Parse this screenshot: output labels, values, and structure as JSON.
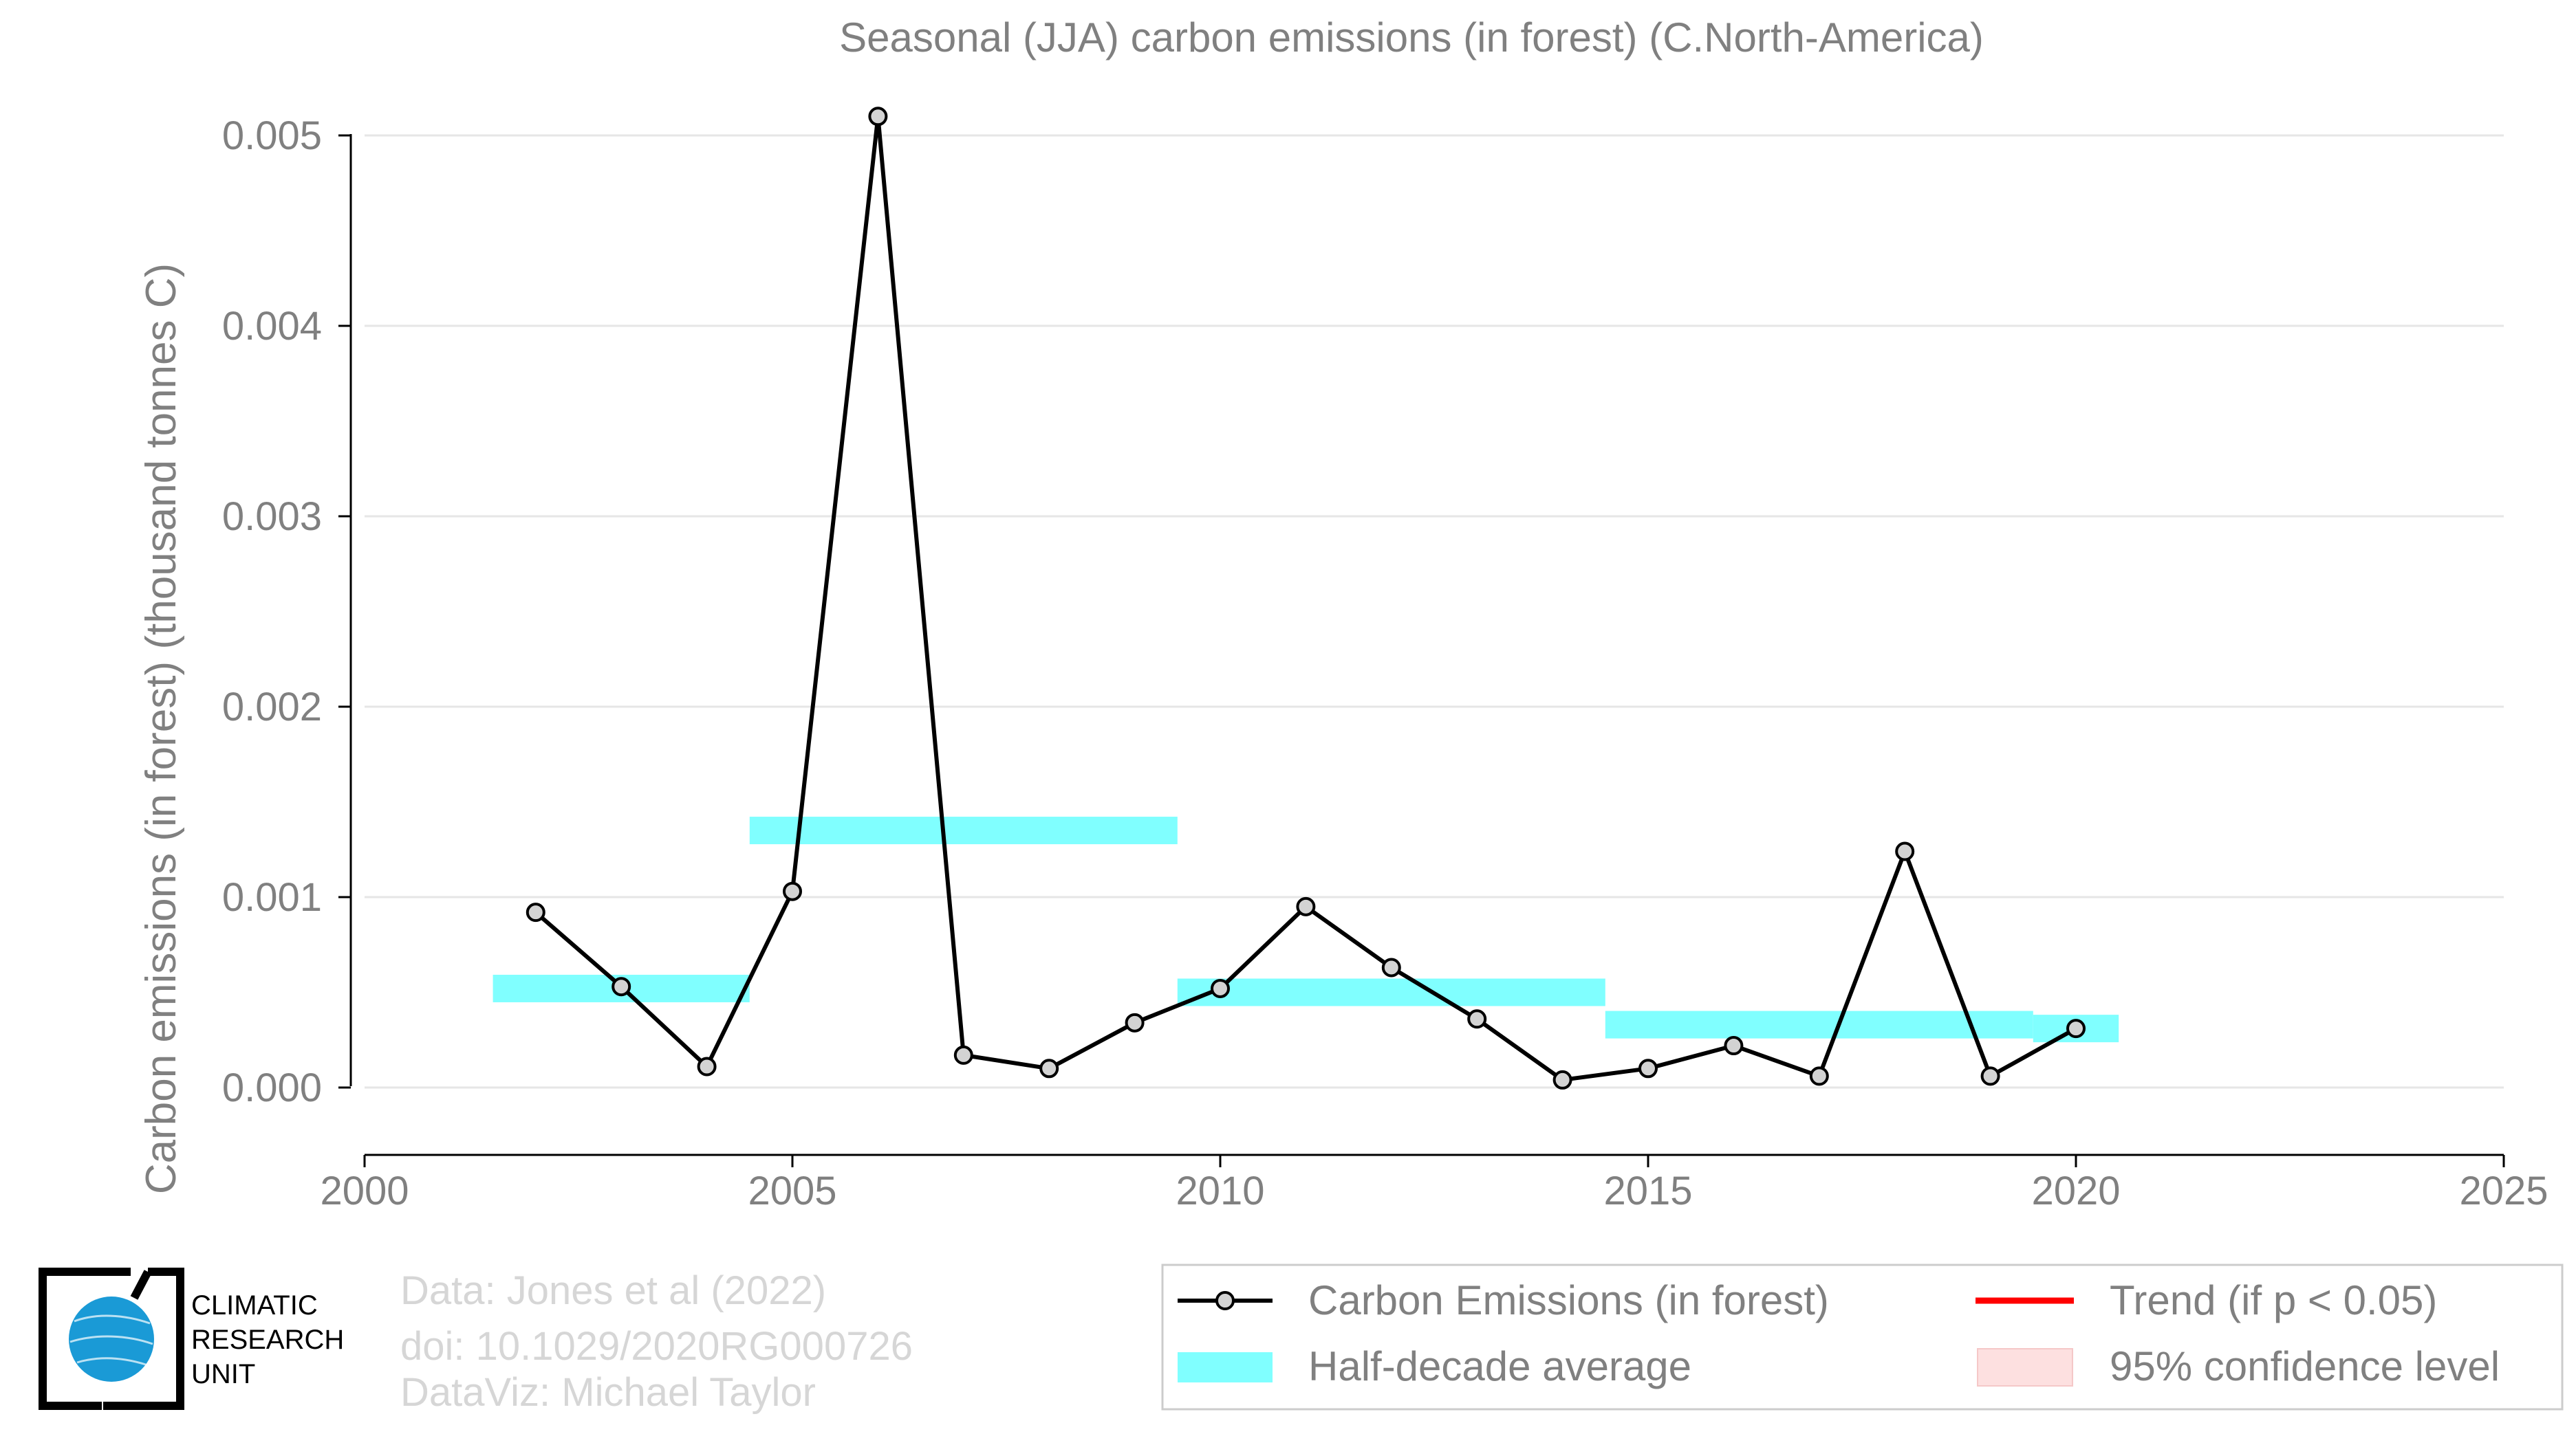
{
  "chart_data": {
    "type": "line",
    "title": "Seasonal (JJA) carbon emissions (in forest) (C.North-America)",
    "ylabel": "Carbon emissions (in forest) (thousand tonnes C)",
    "xlabel": "",
    "xlim": [
      2000,
      2025
    ],
    "ylim": [
      0.0,
      0.005
    ],
    "x_ticks": [
      "2000",
      "2005",
      "2010",
      "2015",
      "2020",
      "2025"
    ],
    "y_ticks": [
      "0.000",
      "0.001",
      "0.002",
      "0.003",
      "0.004",
      "0.005"
    ],
    "grid": "horizontal",
    "series": [
      {
        "name": "Carbon Emissions (in forest)",
        "x": [
          2002,
          2003,
          2004,
          2005,
          2006,
          2007,
          2008,
          2009,
          2010,
          2011,
          2012,
          2013,
          2014,
          2015,
          2016,
          2017,
          2018,
          2019,
          2020
        ],
        "values": [
          0.00092,
          0.00053,
          0.00011,
          0.00103,
          0.0051,
          0.00017,
          0.0001,
          0.00034,
          0.00052,
          0.00095,
          0.00063,
          0.00036,
          4e-05,
          0.0001,
          0.00022,
          6e-05,
          0.00124,
          6e-05,
          0.00031
        ],
        "color": "#000000"
      },
      {
        "name": "Half-decade average",
        "segments": [
          {
            "x": [
              2001.5,
              2004.5
            ],
            "value": 0.00052
          },
          {
            "x": [
              2004.5,
              2009.5
            ],
            "value": 0.00135
          },
          {
            "x": [
              2009.5,
              2014.5
            ],
            "value": 0.0005
          },
          {
            "x": [
              2014.5,
              2019.5
            ],
            "value": 0.00033
          },
          {
            "x": [
              2019.5,
              2020.5
            ],
            "value": 0.00031
          }
        ],
        "color": "#80ffff"
      }
    ],
    "legend": {
      "placement": "bottom-right",
      "items": [
        {
          "label": "Carbon Emissions (in forest)",
          "kind": "line-marker",
          "color": "#000000"
        },
        {
          "label": "Trend (if p < 0.05)",
          "kind": "line",
          "color": "#ff0000"
        },
        {
          "label": "Half-decade average",
          "kind": "band",
          "color": "#80ffff"
        },
        {
          "label": "95% confidence level",
          "kind": "patch",
          "color": "#fde0e0"
        }
      ]
    }
  },
  "credits": {
    "line1": "Data: Jones et al (2022)",
    "line2": "doi: 10.1029/2020RG000726",
    "line3": "DataViz: Michael Taylor"
  },
  "logo": {
    "line1": "CLIMATIC",
    "line2": "RESEARCH",
    "line3": "UNIT",
    "icon": "globe-icon",
    "color": "#1a9ad6"
  }
}
